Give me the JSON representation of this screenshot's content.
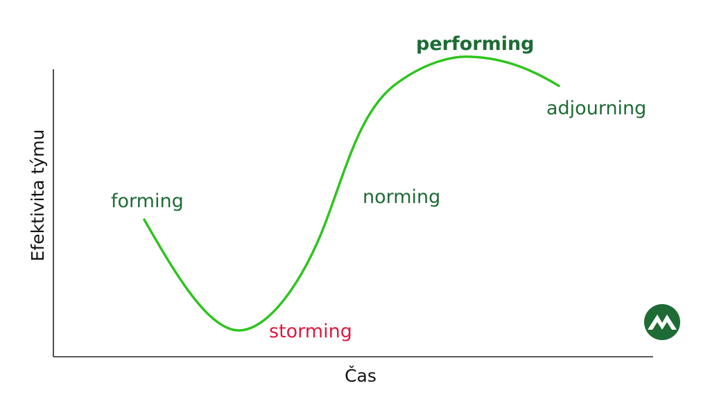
{
  "diagram": {
    "x_axis_label": "Čas",
    "y_axis_label": "Efektivita týmu",
    "stages": {
      "forming": "forming",
      "storming": "storming",
      "norming": "norming",
      "performing": "performing",
      "adjourning": "adjourning"
    },
    "colors": {
      "curve": "#2ec41e",
      "stage_text": "#1e6b35",
      "storming_text": "#e0193f",
      "axis": "#222222",
      "logo_bg": "#1e6b35",
      "logo_fg": "#ffffff"
    },
    "logo": {
      "icon": "mountain-logo-icon"
    }
  }
}
